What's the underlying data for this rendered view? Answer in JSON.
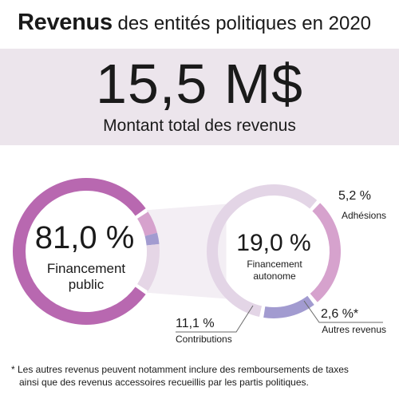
{
  "header": {
    "title_strong": "Revenus",
    "title_rest": " des entités politiques en 2020"
  },
  "total": {
    "amount": "15,5 M$",
    "label": "Montant total des revenus"
  },
  "chart_data": [
    {
      "type": "pie",
      "title": "",
      "slices": [
        {
          "label": "Financement public",
          "value": 81.0,
          "value_label": "81,0 %",
          "color": "#b868b0"
        },
        {
          "label": "Financement autonome",
          "value": 19.0,
          "value_label": "19,0 %",
          "color": "#e5d6e6"
        }
      ],
      "center_value": "81,0 %",
      "center_label_lines": [
        "Financement",
        "public"
      ]
    },
    {
      "type": "pie",
      "title": "",
      "slices": [
        {
          "label": "Adhésions",
          "value": 5.2,
          "value_label": "5,2 %",
          "color": "#d6a2cd"
        },
        {
          "label": "Autres revenus",
          "value": 2.6,
          "value_label": "2,6 %*",
          "color": "#a29bd0"
        },
        {
          "label": "Contributions",
          "value": 11.1,
          "value_label": "11,1 %",
          "color": "#e3d5e6"
        }
      ],
      "center_value": "19,0 %",
      "center_label_lines": [
        "Financement",
        "autonome"
      ]
    }
  ],
  "footnote": {
    "line1": "* Les autres revenus peuvent notamment inclure des remboursements de taxes",
    "line2": "ainsi que des revenus accessoires recueillis par les partis politiques."
  }
}
